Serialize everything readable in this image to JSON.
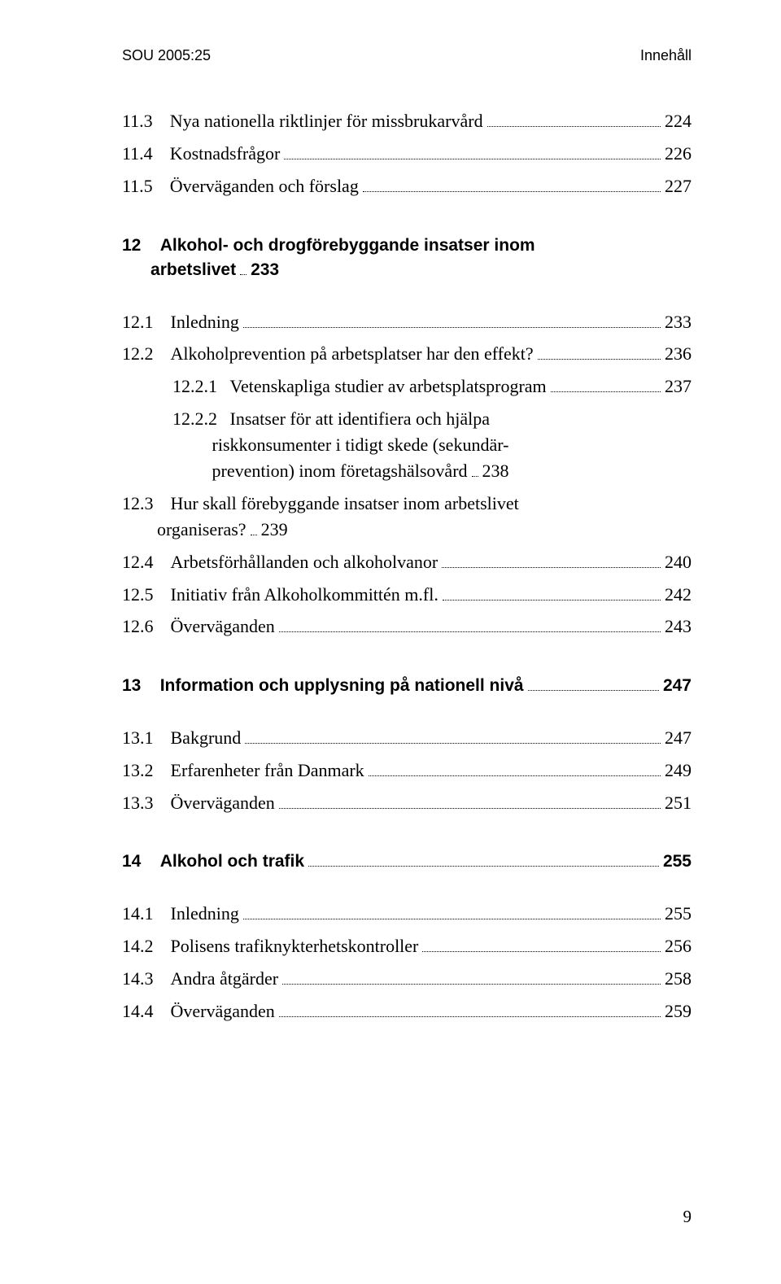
{
  "header": {
    "left": "SOU 2005:25",
    "right": "Innehåll"
  },
  "pageNumber": "9",
  "toc": [
    {
      "kind": "section",
      "num": "11.3",
      "text": "Nya nationella riktlinjer för missbrukarvård",
      "page": "224"
    },
    {
      "kind": "section",
      "num": "11.4",
      "text": "Kostnadsfrågor",
      "page": "226"
    },
    {
      "kind": "section",
      "num": "11.5",
      "text": "Överväganden och förslag",
      "page": "227"
    },
    {
      "kind": "gap-big"
    },
    {
      "kind": "chapter",
      "num": "12",
      "text_l1": "Alkohol- och drogförebyggande insatser inom",
      "text_l2": "arbetslivet",
      "page": "233"
    },
    {
      "kind": "gap"
    },
    {
      "kind": "section",
      "num": "12.1",
      "text": "Inledning",
      "page": "233"
    },
    {
      "kind": "section",
      "num": "12.2",
      "text": "Alkoholprevention på arbetsplatser har den effekt?",
      "page": "236"
    },
    {
      "kind": "sub",
      "num": "12.2.1",
      "text": "Vetenskapliga studier av arbetsplatsprogram",
      "page": "237"
    },
    {
      "kind": "sub-multi",
      "num": "12.2.2",
      "text_l1": "Insatser för att identifiera och hjälpa",
      "text_l2": "riskkonsumenter i tidigt skede (sekundär-",
      "text_l3": "prevention) inom företagshälsovård",
      "page": "238"
    },
    {
      "kind": "section-multi",
      "num": "12.3",
      "text_l1": "Hur skall förebyggande insatser inom arbetslivet",
      "text_l2": "organiseras?",
      "page": "239"
    },
    {
      "kind": "section",
      "num": "12.4",
      "text": "Arbetsförhållanden och alkoholvanor",
      "page": "240"
    },
    {
      "kind": "section",
      "num": "12.5",
      "text": "Initiativ från Alkoholkommittén m.fl.",
      "page": "242"
    },
    {
      "kind": "section",
      "num": "12.6",
      "text": "Överväganden",
      "page": "243"
    },
    {
      "kind": "gap-big"
    },
    {
      "kind": "chapter",
      "num": "13",
      "text": "Information och upplysning på nationell nivå",
      "page": "247"
    },
    {
      "kind": "gap"
    },
    {
      "kind": "section",
      "num": "13.1",
      "text": "Bakgrund",
      "page": "247"
    },
    {
      "kind": "section",
      "num": "13.2",
      "text": "Erfarenheter från Danmark",
      "page": "249"
    },
    {
      "kind": "section",
      "num": "13.3",
      "text": "Överväganden",
      "page": "251"
    },
    {
      "kind": "gap-big"
    },
    {
      "kind": "chapter",
      "num": "14",
      "text": "Alkohol och trafik",
      "page": "255"
    },
    {
      "kind": "gap"
    },
    {
      "kind": "section",
      "num": "14.1",
      "text": "Inledning",
      "page": "255"
    },
    {
      "kind": "section",
      "num": "14.2",
      "text": "Polisens trafiknykterhetskontroller",
      "page": "256"
    },
    {
      "kind": "section",
      "num": "14.3",
      "text": "Andra åtgärder",
      "page": "258"
    },
    {
      "kind": "section",
      "num": "14.4",
      "text": "Överväganden",
      "page": "259"
    }
  ]
}
